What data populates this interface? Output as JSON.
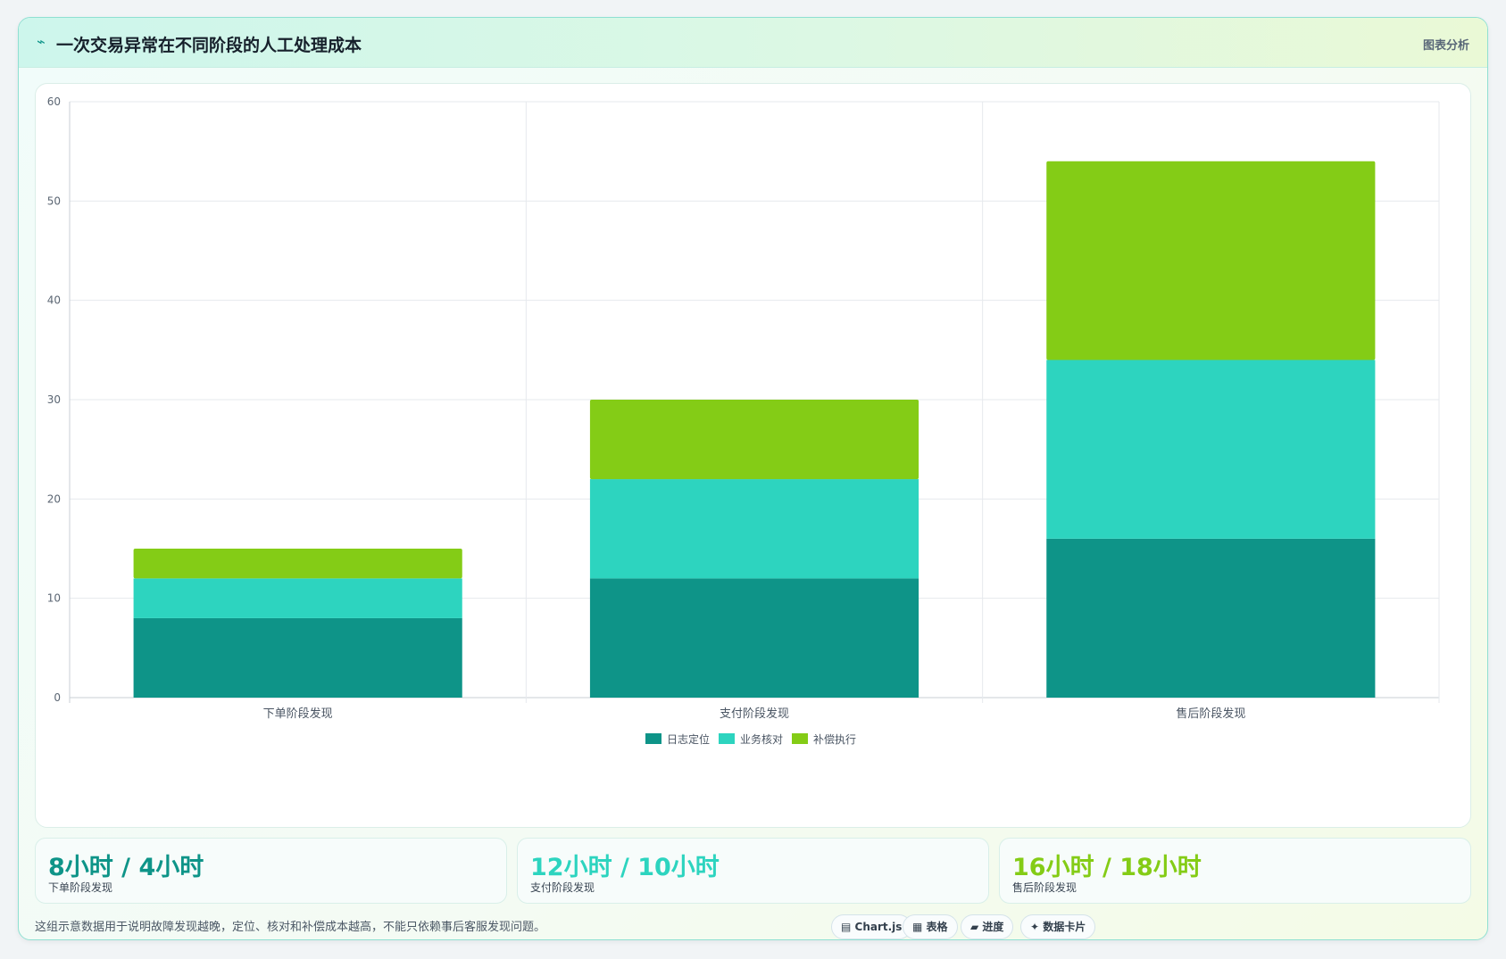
{
  "header": {
    "icon": "wave-icon",
    "title": "一次交易异常在不同阶段的人工处理成本",
    "tag": "图表分析"
  },
  "chart_data": {
    "type": "bar",
    "stacked": true,
    "categories": [
      "下单阶段发现",
      "支付阶段发现",
      "售后阶段发现"
    ],
    "series": [
      {
        "name": "日志定位",
        "values": [
          8,
          12,
          16
        ],
        "color": "#0e9488"
      },
      {
        "name": "业务核对",
        "values": [
          4,
          10,
          18
        ],
        "color": "#2dd4bf"
      },
      {
        "name": "补偿执行",
        "values": [
          3,
          8,
          20
        ],
        "color": "#84cc16"
      }
    ],
    "ylim": [
      0,
      60
    ],
    "yticks": [
      0,
      10,
      20,
      30,
      40,
      50,
      60
    ],
    "grid": true,
    "legend": "bottom"
  },
  "kpis": [
    {
      "value": "8小时 / 4小时",
      "label": "下单阶段发现",
      "color": "#0e9488"
    },
    {
      "value": "12小时 / 10小时",
      "label": "支付阶段发现",
      "color": "#2dd4bf"
    },
    {
      "value": "16小时 / 18小时",
      "label": "售后阶段发现",
      "color": "#84cc16"
    }
  ],
  "footer": {
    "note": "这组示意数据用于说明故障发现越晚，定位、核对和补偿成本越高，不能只依赖事后客服发现问题。",
    "chips": [
      "▤ Chart.js",
      "▦ 表格",
      "▰ 进度",
      "✦ 数据卡片"
    ]
  }
}
